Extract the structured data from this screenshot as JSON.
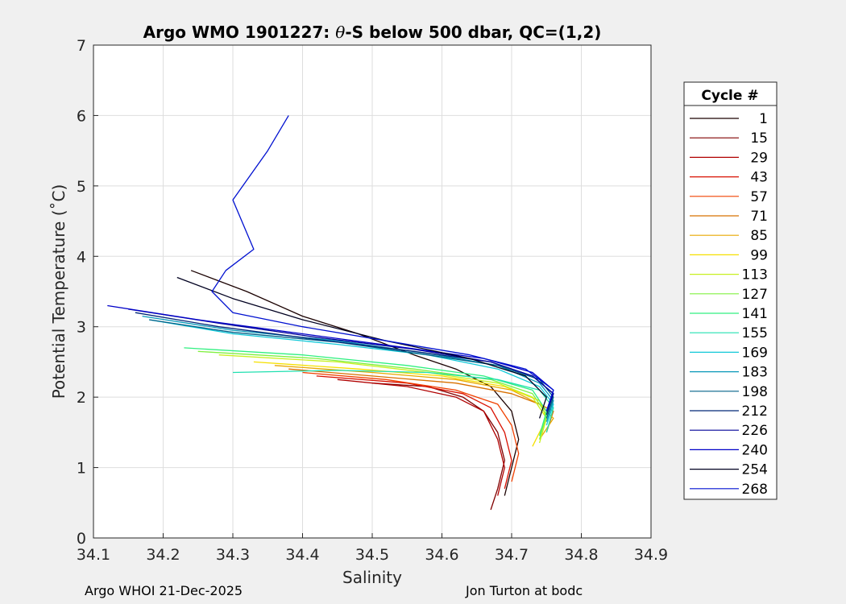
{
  "chart_data": {
    "type": "line",
    "title_prefix": "Argo WMO 1901227: ",
    "title_theta": "θ",
    "title_suffix": "-S below 500 dbar,  QC=(1,2)",
    "xlabel": "Salinity",
    "ylabel": "Potential Temperature (˚C)",
    "xlim": [
      34.1,
      34.9
    ],
    "ylim": [
      0,
      7
    ],
    "xticks": [
      34.1,
      34.2,
      34.3,
      34.4,
      34.5,
      34.6,
      34.7,
      34.8,
      34.9
    ],
    "xtick_labels": [
      "34.1",
      "34.2",
      "34.3",
      "34.4",
      "34.5",
      "34.6",
      "34.7",
      "34.8",
      "34.9"
    ],
    "yticks": [
      0,
      1,
      2,
      3,
      4,
      5,
      6,
      7
    ],
    "ytick_labels": [
      "0",
      "1",
      "2",
      "3",
      "4",
      "5",
      "6",
      "7"
    ],
    "grid": true,
    "legend_title": "Cycle #",
    "legend_position": "right",
    "legend": [
      {
        "label": "1",
        "color": "#1a0000"
      },
      {
        "label": "15",
        "color": "#800000"
      },
      {
        "label": "29",
        "color": "#b00000"
      },
      {
        "label": "43",
        "color": "#d81000"
      },
      {
        "label": "57",
        "color": "#f04000"
      },
      {
        "label": "71",
        "color": "#d87000"
      },
      {
        "label": "85",
        "color": "#e8a800"
      },
      {
        "label": "99",
        "color": "#f5e000"
      },
      {
        "label": "113",
        "color": "#c8f020"
      },
      {
        "label": "127",
        "color": "#80f040"
      },
      {
        "label": "141",
        "color": "#30f080"
      },
      {
        "label": "155",
        "color": "#20e0b0"
      },
      {
        "label": "169",
        "color": "#10c8d8"
      },
      {
        "label": "183",
        "color": "#0898b8"
      },
      {
        "label": "198",
        "color": "#006088"
      },
      {
        "label": "212",
        "color": "#002878"
      },
      {
        "label": "226",
        "color": "#000098"
      },
      {
        "label": "240",
        "color": "#0000c8"
      },
      {
        "label": "254",
        "color": "#000020"
      },
      {
        "label": "268",
        "color": "#0010d0"
      }
    ],
    "series": [
      {
        "name": "1",
        "color": "#1a0000",
        "x": [
          34.24,
          34.32,
          34.4,
          34.48,
          34.56,
          34.62,
          34.67,
          34.7,
          34.71,
          34.7,
          34.69
        ],
        "y": [
          3.8,
          3.5,
          3.15,
          2.9,
          2.6,
          2.4,
          2.15,
          1.8,
          1.4,
          1.0,
          0.6
        ]
      },
      {
        "name": "15",
        "color": "#800000",
        "x": [
          34.5,
          34.58,
          34.63,
          34.66,
          34.68,
          34.69,
          34.68,
          34.67
        ],
        "y": [
          2.2,
          2.15,
          2.0,
          1.8,
          1.5,
          1.1,
          0.7,
          0.4
        ]
      },
      {
        "name": "29",
        "color": "#b00000",
        "x": [
          34.45,
          34.55,
          34.62,
          34.66,
          34.68,
          34.69,
          34.68
        ],
        "y": [
          2.25,
          2.15,
          2.0,
          1.8,
          1.4,
          1.0,
          0.6
        ]
      },
      {
        "name": "43",
        "color": "#d81000",
        "x": [
          34.42,
          34.55,
          34.63,
          34.67,
          34.69,
          34.7,
          34.69
        ],
        "y": [
          2.3,
          2.2,
          2.05,
          1.85,
          1.5,
          1.1,
          0.7
        ]
      },
      {
        "name": "57",
        "color": "#f04000",
        "x": [
          34.4,
          34.52,
          34.62,
          34.68,
          34.7,
          34.71,
          34.7
        ],
        "y": [
          2.35,
          2.25,
          2.1,
          1.9,
          1.6,
          1.2,
          0.8
        ]
      },
      {
        "name": "71",
        "color": "#d87000",
        "x": [
          34.38,
          34.5,
          34.62,
          34.7,
          34.74,
          34.76,
          34.75
        ],
        "y": [
          2.4,
          2.3,
          2.2,
          2.05,
          1.9,
          1.8,
          1.5
        ]
      },
      {
        "name": "85",
        "color": "#e8a800",
        "x": [
          34.36,
          34.5,
          34.62,
          34.7,
          34.74,
          34.76,
          34.74
        ],
        "y": [
          2.45,
          2.35,
          2.25,
          2.1,
          1.9,
          1.7,
          1.4
        ]
      },
      {
        "name": "99",
        "color": "#f5e000",
        "x": [
          34.33,
          34.48,
          34.6,
          34.69,
          34.74,
          34.75,
          34.73
        ],
        "y": [
          2.5,
          2.4,
          2.3,
          2.15,
          1.95,
          1.7,
          1.3
        ]
      },
      {
        "name": "113",
        "color": "#c8f020",
        "x": [
          34.28,
          34.45,
          34.58,
          34.68,
          34.73,
          34.75,
          34.74
        ],
        "y": [
          2.6,
          2.5,
          2.35,
          2.2,
          2.0,
          1.7,
          1.35
        ]
      },
      {
        "name": "127",
        "color": "#80f040",
        "x": [
          34.25,
          34.42,
          34.56,
          34.67,
          34.73,
          34.75,
          34.74
        ],
        "y": [
          2.65,
          2.55,
          2.4,
          2.25,
          2.05,
          1.75,
          1.4
        ]
      },
      {
        "name": "141",
        "color": "#30f080",
        "x": [
          34.23,
          34.4,
          34.55,
          34.66,
          34.73,
          34.75,
          34.74
        ],
        "y": [
          2.7,
          2.6,
          2.45,
          2.3,
          2.1,
          1.8,
          1.45
        ]
      },
      {
        "name": "155",
        "color": "#20e0b0",
        "x": [
          34.3,
          34.45,
          34.58,
          34.68,
          34.74,
          34.76,
          34.75
        ],
        "y": [
          2.35,
          2.38,
          2.35,
          2.25,
          2.1,
          1.85,
          1.5
        ]
      },
      {
        "name": "169",
        "color": "#10c8d8",
        "x": [
          34.18,
          34.3,
          34.45,
          34.58,
          34.68,
          34.74,
          34.76,
          34.75
        ],
        "y": [
          3.1,
          2.9,
          2.75,
          2.6,
          2.4,
          2.15,
          1.9,
          1.6
        ]
      },
      {
        "name": "183",
        "color": "#0898b8",
        "x": [
          34.17,
          34.3,
          34.45,
          34.58,
          34.68,
          34.74,
          34.76,
          34.75
        ],
        "y": [
          3.15,
          2.95,
          2.8,
          2.62,
          2.45,
          2.2,
          1.95,
          1.65
        ]
      },
      {
        "name": "198",
        "color": "#006088",
        "x": [
          34.18,
          34.3,
          34.45,
          34.58,
          34.68,
          34.74,
          34.76,
          34.75
        ],
        "y": [
          3.1,
          2.92,
          2.78,
          2.6,
          2.45,
          2.25,
          2.0,
          1.7
        ]
      },
      {
        "name": "212",
        "color": "#002878",
        "x": [
          34.16,
          34.28,
          34.42,
          34.56,
          34.67,
          34.73,
          34.76,
          34.75
        ],
        "y": [
          3.2,
          3.0,
          2.82,
          2.65,
          2.5,
          2.3,
          2.05,
          1.75
        ]
      },
      {
        "name": "226",
        "color": "#000098",
        "x": [
          34.15,
          34.28,
          34.42,
          34.56,
          34.67,
          34.73,
          34.76,
          34.75
        ],
        "y": [
          3.25,
          3.05,
          2.85,
          2.68,
          2.5,
          2.3,
          2.05,
          1.8
        ]
      },
      {
        "name": "240",
        "color": "#0000c8",
        "x": [
          34.12,
          34.25,
          34.4,
          34.55,
          34.66,
          34.73,
          34.76,
          34.75
        ],
        "y": [
          3.3,
          3.1,
          2.9,
          2.7,
          2.55,
          2.35,
          2.1,
          1.8
        ]
      },
      {
        "name": "254",
        "color": "#000020",
        "x": [
          34.22,
          34.3,
          34.4,
          34.52,
          34.64,
          34.72,
          34.75,
          34.74
        ],
        "y": [
          3.7,
          3.4,
          3.1,
          2.8,
          2.55,
          2.3,
          2.0,
          1.7
        ]
      },
      {
        "name": "268",
        "color": "#0010d0",
        "x": [
          34.38,
          34.35,
          34.3,
          34.33,
          34.29,
          34.27,
          34.3,
          34.4,
          34.52,
          34.64,
          34.72,
          34.76,
          34.75
        ],
        "y": [
          6.0,
          5.5,
          4.8,
          4.1,
          3.8,
          3.5,
          3.2,
          3.0,
          2.8,
          2.6,
          2.4,
          2.1,
          1.8
        ]
      }
    ]
  },
  "footer": {
    "left": "Argo WHOI 21-Dec-2025",
    "right": "Jon Turton at bodc"
  }
}
